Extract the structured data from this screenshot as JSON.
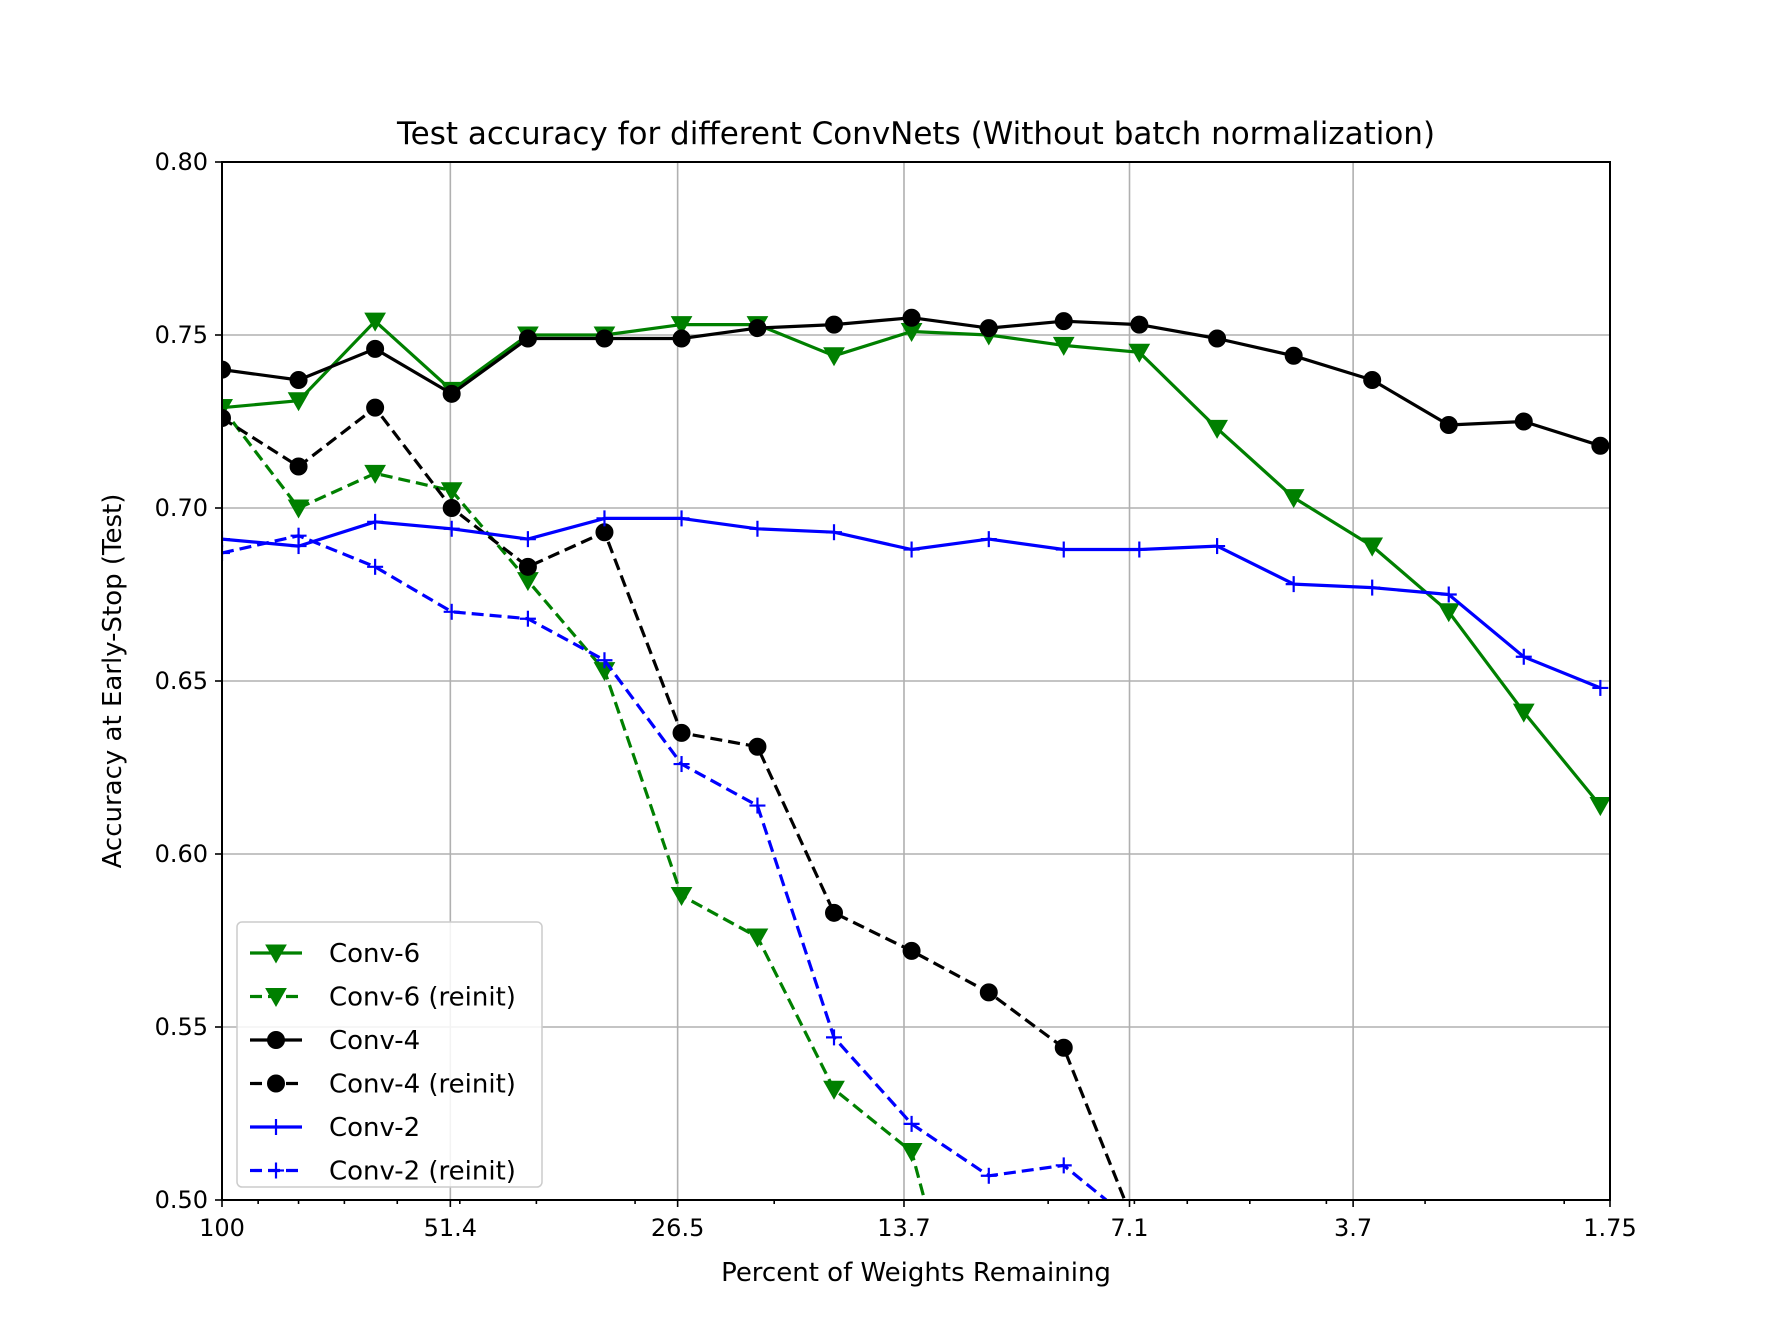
{
  "chart_data": {
    "type": "line",
    "title": "Test accuracy for different ConvNets (Without batch normalization)",
    "xlabel": "Percent of Weights Remaining",
    "ylabel": "Accuracy at Early-Stop (Test)",
    "x_scale": "log",
    "x_direction": "decreasing",
    "xlim": [
      100,
      1.75
    ],
    "ylim": [
      0.5,
      0.8
    ],
    "x_ticks": [
      100,
      51.4,
      26.5,
      13.7,
      7.1,
      3.7,
      1.75
    ],
    "x_tick_labels": [
      "100",
      "51.4",
      "26.5",
      "13.7",
      "7.1",
      "3.7",
      "1.75"
    ],
    "y_ticks": [
      0.5,
      0.55,
      0.6,
      0.65,
      0.7,
      0.75,
      0.8
    ],
    "y_tick_labels": [
      "0.50",
      "0.55",
      "0.60",
      "0.65",
      "0.70",
      "0.75",
      "0.80"
    ],
    "grid": true,
    "legend_position": "lower-left",
    "x": [
      100,
      71.7,
      51.4,
      36.9,
      26.5,
      19.0,
      13.7,
      9.8,
      7.1,
      5.1,
      3.7,
      2.7,
      1.9,
      1.75
    ],
    "series": [
      {
        "name": "Conv-6",
        "color": "#008000",
        "linestyle": "solid",
        "marker": "triangle-down",
        "x": [
          100,
          80,
          64,
          51.2,
          41,
          32.8,
          26.2,
          21,
          16.8,
          13.4,
          10.7,
          8.6,
          6.9,
          5.5,
          4.4,
          3.5,
          2.8,
          2.25,
          1.8
        ],
        "values": [
          0.729,
          0.731,
          0.754,
          0.734,
          0.75,
          0.75,
          0.753,
          0.753,
          0.744,
          0.751,
          0.75,
          0.747,
          0.745,
          0.723,
          0.703,
          0.689,
          0.67,
          0.641,
          0.614
        ]
      },
      {
        "name": "Conv-6 (reinit)",
        "color": "#008000",
        "linestyle": "dashed",
        "marker": "triangle-down",
        "x": [
          100,
          80,
          64,
          51.2,
          41,
          32.8,
          26.2,
          21,
          16.8,
          13.4,
          12.9
        ],
        "values": [
          0.729,
          0.7,
          0.71,
          0.705,
          0.679,
          0.653,
          0.588,
          0.576,
          0.532,
          0.514,
          0.5
        ]
      },
      {
        "name": "Conv-4",
        "color": "#000000",
        "linestyle": "solid",
        "marker": "circle",
        "x": [
          100,
          80,
          64,
          51.2,
          41,
          32.8,
          26.2,
          21,
          16.8,
          13.4,
          10.7,
          8.6,
          6.9,
          5.5,
          4.4,
          3.5,
          2.8,
          2.25,
          1.8
        ],
        "values": [
          0.74,
          0.737,
          0.746,
          0.733,
          0.749,
          0.749,
          0.749,
          0.752,
          0.753,
          0.755,
          0.752,
          0.754,
          0.753,
          0.749,
          0.744,
          0.737,
          0.724,
          0.725,
          0.718
        ]
      },
      {
        "name": "Conv-4 (reinit)",
        "color": "#000000",
        "linestyle": "dashed",
        "marker": "circle",
        "x": [
          100,
          80,
          64,
          51.2,
          41,
          32.8,
          26.2,
          21,
          16.8,
          13.4,
          10.7,
          8.6,
          7.2
        ],
        "values": [
          0.726,
          0.712,
          0.729,
          0.7,
          0.683,
          0.693,
          0.635,
          0.631,
          0.583,
          0.572,
          0.56,
          0.544,
          0.5
        ]
      },
      {
        "name": "Conv-2",
        "color": "#0000ff",
        "linestyle": "solid",
        "marker": "plus",
        "x": [
          100,
          80,
          64,
          51.2,
          41,
          32.8,
          26.2,
          21,
          16.8,
          13.4,
          10.7,
          8.6,
          6.9,
          5.5,
          4.4,
          3.5,
          2.8,
          2.25,
          1.8
        ],
        "values": [
          0.691,
          0.689,
          0.696,
          0.694,
          0.691,
          0.697,
          0.697,
          0.694,
          0.693,
          0.688,
          0.691,
          0.688,
          0.688,
          0.689,
          0.678,
          0.677,
          0.675,
          0.657,
          0.648
        ]
      },
      {
        "name": "Conv-2 (reinit)",
        "color": "#0000ff",
        "linestyle": "dashed",
        "marker": "plus",
        "x": [
          100,
          80,
          64,
          51.2,
          41,
          32.8,
          26.2,
          21,
          16.8,
          13.4,
          10.7,
          8.6,
          7.6
        ],
        "values": [
          0.687,
          0.692,
          0.683,
          0.67,
          0.668,
          0.656,
          0.626,
          0.614,
          0.547,
          0.522,
          0.507,
          0.51,
          0.5
        ]
      }
    ]
  }
}
